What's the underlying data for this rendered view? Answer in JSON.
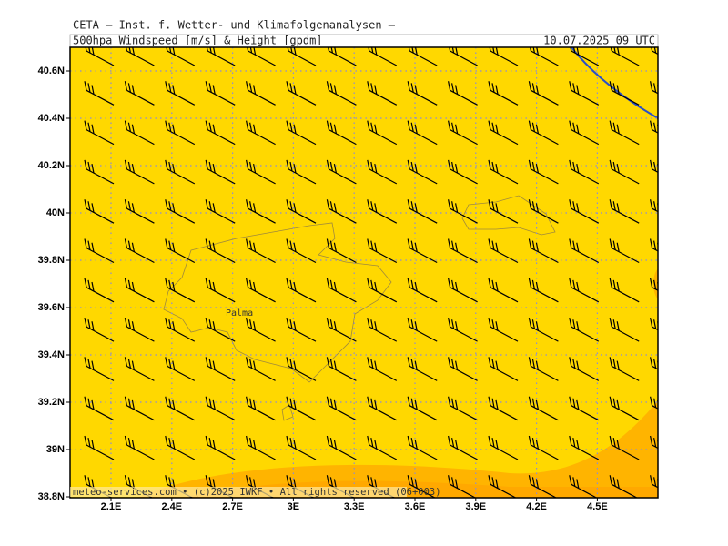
{
  "header": {
    "line1": "CETA – Inst. f. Wetter- und Klimafolgenanalysen –",
    "product": "500hpa Windspeed [m/s] & Height [gpdm]",
    "valid": "10.07.2025 09 UTC"
  },
  "map": {
    "lat_labels": [
      "40.6N",
      "40.4N",
      "40.2N",
      "40N",
      "39.8N",
      "39.6N",
      "39.4N",
      "39.2N",
      "39N",
      "38.8N"
    ],
    "lon_labels": [
      "2.1E",
      "2.4E",
      "2.7E",
      "3E",
      "3.3E",
      "3.6E",
      "3.9E",
      "4.2E",
      "4.5E"
    ],
    "place": "Palma"
  },
  "footer": "meteo-services.com • (c)2025 IWKF • All rights reserved (06+003)"
}
